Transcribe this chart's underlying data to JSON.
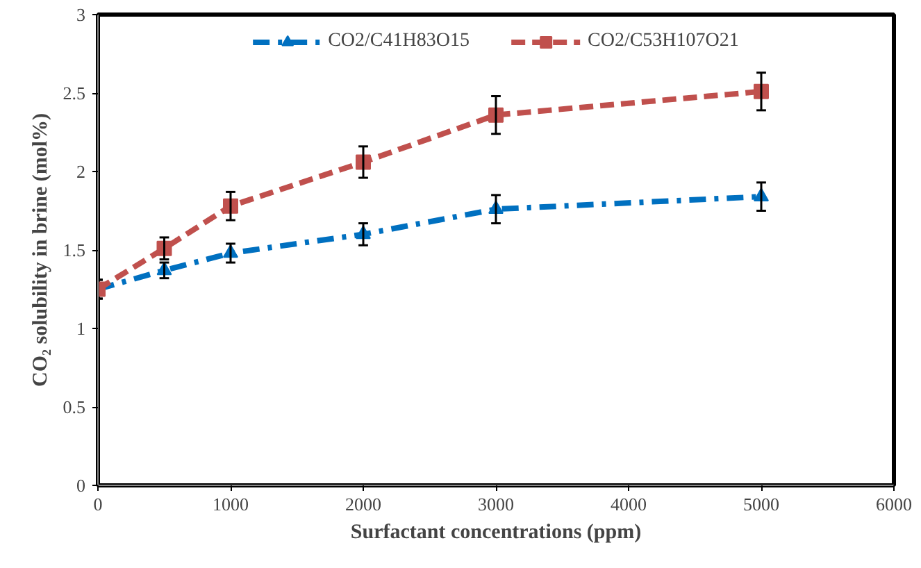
{
  "chart_data": {
    "type": "line",
    "xlabel": "Surfactant concentrations (ppm)",
    "ylabel": "CO₂ solubility in brine (mol%)",
    "x": [
      0,
      500,
      1000,
      2000,
      3000,
      5000
    ],
    "xlim": [
      0,
      6000
    ],
    "xticks": [
      0,
      1000,
      2000,
      3000,
      4000,
      5000,
      6000
    ],
    "ylim": [
      0,
      3
    ],
    "yticks": [
      0,
      0.5,
      1,
      1.5,
      2,
      2.5,
      3
    ],
    "grid": false,
    "legend": "top",
    "series": [
      {
        "name": "CO2/C41H83O15",
        "color": "#0070c0",
        "marker": "triangle",
        "line_style": "dashdot",
        "values": [
          1.25,
          1.37,
          1.48,
          1.6,
          1.76,
          1.84
        ],
        "errors": [
          0.06,
          0.05,
          0.06,
          0.07,
          0.09,
          0.09
        ]
      },
      {
        "name": "CO2/C53H107O21",
        "color": "#c0504d",
        "marker": "square",
        "line_style": "dashed",
        "values": [
          1.25,
          1.51,
          1.78,
          2.06,
          2.36,
          2.51
        ],
        "errors": [
          0.06,
          0.07,
          0.09,
          0.1,
          0.12,
          0.12
        ]
      }
    ]
  }
}
